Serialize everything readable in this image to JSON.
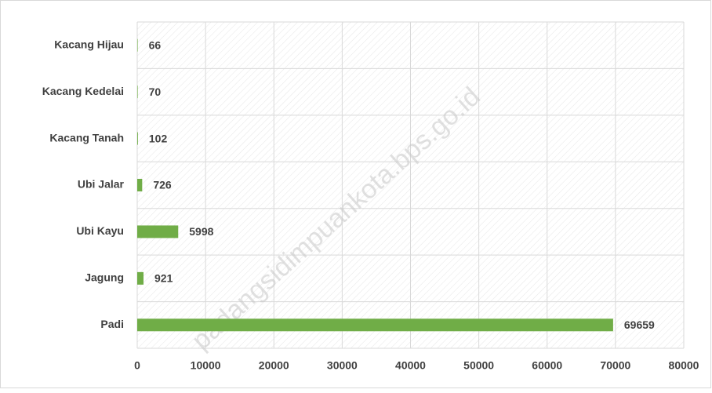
{
  "chart_data": {
    "type": "bar",
    "orientation": "horizontal",
    "categories": [
      "Kacang Hijau",
      "Kacang Kedelai",
      "Kacang Tanah",
      "Ubi Jalar",
      "Ubi Kayu",
      "Jagung",
      "Padi"
    ],
    "values": [
      66,
      70,
      102,
      726,
      5998,
      921,
      69659
    ],
    "color": "#70ad47",
    "xlim": [
      0,
      80000
    ],
    "xticks": [
      0,
      10000,
      20000,
      30000,
      40000,
      50000,
      60000,
      70000,
      80000
    ],
    "grid": true,
    "watermark": "padangsidimpuankota.bps.go.id"
  }
}
